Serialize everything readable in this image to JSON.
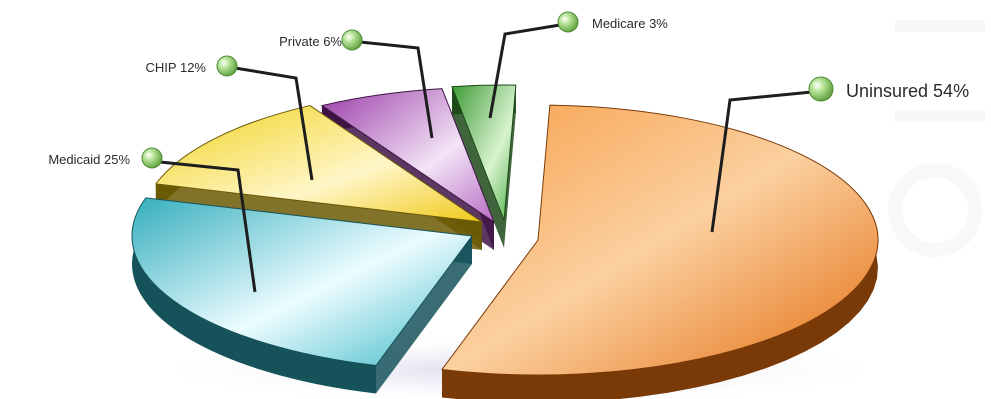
{
  "chart_data": {
    "type": "pie",
    "categories": [
      "Uninsured",
      "Medicaid",
      "CHIP",
      "Private",
      "Medicare"
    ],
    "values": [
      54,
      25,
      12,
      6,
      3
    ],
    "labels": [
      "Uninsured 54%",
      "Medicaid 25%",
      "CHIP 12%",
      "Private 6%",
      "Medicare 3%"
    ],
    "colors": [
      "#f08a2c",
      "#4fc3cf",
      "#f5d93a",
      "#a04bb0",
      "#4caf45"
    ],
    "style": "3d-exploded",
    "legend": "none"
  }
}
